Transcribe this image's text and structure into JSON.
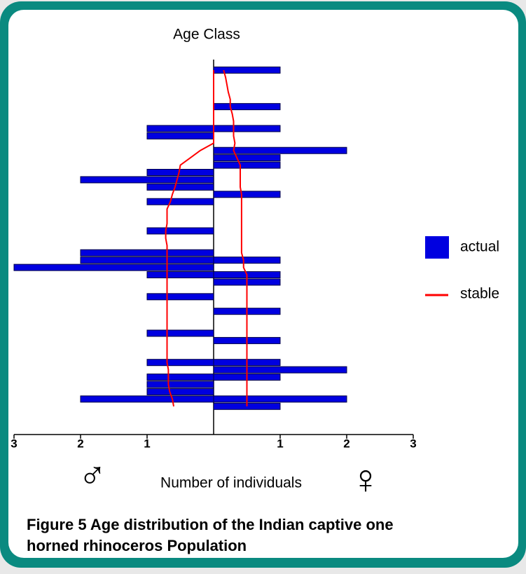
{
  "chart_data": {
    "type": "bar",
    "orientation": "pyramid",
    "title": "Age Class",
    "xlabel": "Number of individuals",
    "male_symbol": "♂",
    "female_symbol": "♀",
    "caption": [
      "Figure 5 Age distribution of the Indian captive one",
      "horned rhinoceros Population"
    ],
    "categories": [
      null,
      null,
      null,
      null,
      null,
      null,
      null,
      null,
      null,
      null,
      null,
      null,
      null,
      null,
      null,
      null,
      null,
      null,
      null,
      null,
      null,
      null,
      null,
      null,
      null,
      null,
      null,
      null,
      null,
      null,
      null,
      null,
      null,
      null,
      null,
      null,
      null,
      null,
      null,
      null,
      null,
      null,
      null,
      null,
      null,
      null,
      null
    ],
    "series": [
      {
        "name": "actual",
        "color": "#0000e0",
        "male": [
          0,
          0,
          0,
          0,
          0,
          0,
          0,
          0,
          1,
          1,
          0,
          0,
          0,
          0,
          1,
          2,
          1,
          0,
          1,
          0,
          0,
          0,
          1,
          0,
          0,
          2,
          2,
          3,
          1,
          0,
          0,
          1,
          0,
          0,
          0,
          0,
          1,
          0,
          0,
          0,
          1,
          0,
          1,
          1,
          1,
          2,
          0
        ],
        "female": [
          1,
          0,
          0,
          0,
          0,
          1,
          0,
          0,
          1,
          0,
          0,
          2,
          1,
          1,
          0,
          0,
          0,
          1,
          0,
          0,
          0,
          0,
          0,
          0,
          0,
          0,
          1,
          0,
          1,
          1,
          0,
          0,
          0,
          1,
          0,
          0,
          0,
          1,
          0,
          0,
          1,
          2,
          1,
          0,
          0,
          2,
          1
        ]
      },
      {
        "name": "stable",
        "color": "#ff0000",
        "male": [
          0,
          0,
          0,
          0,
          0,
          0,
          0,
          0,
          0,
          0,
          0,
          0.2,
          0.35,
          0.5,
          0.52,
          0.55,
          0.58,
          0.62,
          0.65,
          0.7,
          0.7,
          0.7,
          0.72,
          0.72,
          0.7,
          0.7,
          0.7,
          0.7,
          0.7,
          0.7,
          0.7,
          0.7,
          0.7,
          0.7,
          0.7,
          0.7,
          0.7,
          0.7,
          0.7,
          0.7,
          0.7,
          0.68,
          0.68,
          0.68,
          0.66,
          0.62,
          0.6
        ],
        "female": [
          0.15,
          0.18,
          0.2,
          0.22,
          0.25,
          0.25,
          0.28,
          0.3,
          0.3,
          0.3,
          0.32,
          0.3,
          0.35,
          0.4,
          0.4,
          0.4,
          0.4,
          0.42,
          0.42,
          0.42,
          0.42,
          0.42,
          0.42,
          0.42,
          0.42,
          0.42,
          0.45,
          0.45,
          0.5,
          0.5,
          0.5,
          0.5,
          0.5,
          0.5,
          0.5,
          0.5,
          0.5,
          0.5,
          0.5,
          0.5,
          0.5,
          0.5,
          0.5,
          0.5,
          0.5,
          0.5,
          0.5
        ]
      }
    ],
    "xlim": [
      -3,
      3
    ],
    "xticks": [
      {
        "value": -3,
        "label": "3"
      },
      {
        "value": -2,
        "label": "2"
      },
      {
        "value": -1,
        "label": "1"
      },
      1,
      2,
      3
    ],
    "legend": "right"
  }
}
